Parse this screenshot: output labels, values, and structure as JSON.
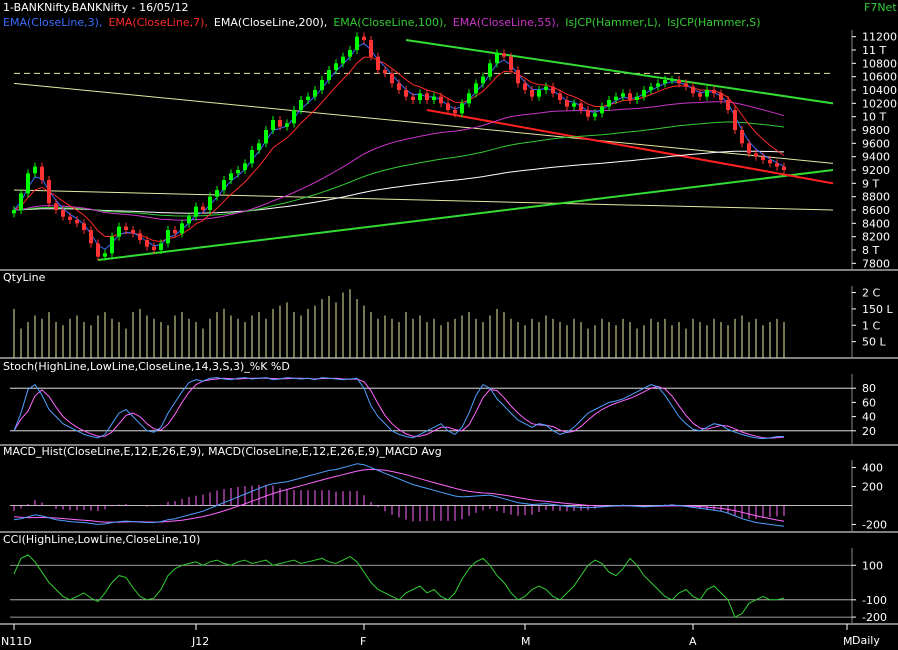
{
  "header": {
    "title": "1-BANKNifty.BANKNifty - 16/05/12",
    "brand": "F7Net",
    "interval": "Daily"
  },
  "colors": {
    "grid": "#ffffff",
    "axis_text": "#ffffff",
    "candle_up": "#00ff00",
    "candle_down": "#ff3333",
    "ema3": "#3a6cff",
    "ema7": "#ff2a2a",
    "ema200": "#ffffff",
    "ema100": "#33cc33",
    "ema55": "#cc33cc",
    "volume": "#e8e8a0",
    "stoch_k": "#4fa0ff",
    "stoch_d": "#ff66ff",
    "macd_hist": "#ff66ff",
    "macd_line": "#4fa0ff",
    "macd_avg": "#ff66ff",
    "cci": "#33cc33",
    "trend_green": "#33dd33",
    "trend_red": "#ff2020",
    "trend_yellow": "#e8e8a0"
  },
  "panels": {
    "price": {
      "indicators": [
        {
          "text": "EMA(CloseLine,3),",
          "color": "#3a6cff"
        },
        {
          "text": "EMA(CloseLine,7),",
          "color": "#ff2a2a"
        },
        {
          "text": "EMA(CloseLine,200),",
          "color": "#ffffff"
        },
        {
          "text": "EMA(CloseLine,100),",
          "color": "#33cc33"
        },
        {
          "text": "EMA(CloseLine,55),",
          "color": "#cc33cc"
        },
        {
          "text": "IsJCP(Hammer,L),",
          "color": "#33cc33"
        },
        {
          "text": "IsJCP(Hammer,S)",
          "color": "#33cc33"
        }
      ],
      "ticks": [
        "11200",
        "11 T",
        "10800",
        "10600",
        "10400",
        "10200",
        "10 T",
        "9800",
        "9600",
        "9400",
        "9200",
        "9 T",
        "8800",
        "8600",
        "8400",
        "8200",
        "8 T",
        "7800"
      ],
      "ylim": [
        7700,
        11300
      ]
    },
    "volume": {
      "title": "QtyLine",
      "ticks": [
        "2 C",
        "150 L",
        "1 C",
        "50 L"
      ],
      "ylim": [
        0,
        22
      ]
    },
    "stoch": {
      "title": "Stoch(HighLine,LowLine,CloseLine,14,3,S,3)_%K %D",
      "ticks": [
        "80",
        "60",
        "40",
        "20"
      ],
      "ylim": [
        0,
        100
      ]
    },
    "macd": {
      "title": "MACD_Hist(CloseLine,E,12,E,26,E,9),  MACD(CloseLine,E,12,E,26,E,9)_MACD  Avg",
      "ticks": [
        "400",
        "200",
        "-200"
      ],
      "ylim": [
        -280,
        480
      ]
    },
    "cci": {
      "title": "CCI(HighLine,LowLine,CloseLine,10)",
      "ticks": [
        "100",
        "-100",
        "-200"
      ],
      "ylim": [
        -240,
        200
      ]
    }
  },
  "x_axis": {
    "labels": [
      {
        "text": "N11D",
        "index": 0
      },
      {
        "text": "J12",
        "index": 26
      },
      {
        "text": "F",
        "index": 50
      },
      {
        "text": "M",
        "index": 73
      },
      {
        "text": "A",
        "index": 97
      },
      {
        "text": "M",
        "index": 119
      }
    ]
  },
  "chart_data": {
    "type": "candlestick",
    "title": "1-BANKNifty.BANKNifty - 16/05/12",
    "close": [
      8600,
      8850,
      9150,
      9250,
      9050,
      8700,
      8600,
      8500,
      8450,
      8400,
      8300,
      8100,
      7900,
      7950,
      8200,
      8350,
      8300,
      8250,
      8150,
      8050,
      8000,
      8100,
      8300,
      8250,
      8400,
      8500,
      8650,
      8600,
      8800,
      8900,
      9050,
      9150,
      9200,
      9300,
      9500,
      9600,
      9800,
      9950,
      9850,
      9900,
      10100,
      10250,
      10300,
      10400,
      10550,
      10700,
      10800,
      10900,
      11000,
      11200,
      11150,
      10900,
      10700,
      10650,
      10500,
      10400,
      10300,
      10250,
      10350,
      10250,
      10300,
      10200,
      10100,
      10050,
      10200,
      10350,
      10500,
      10600,
      10800,
      10950,
      10900,
      10700,
      10500,
      10400,
      10300,
      10400,
      10450,
      10350,
      10250,
      10150,
      10200,
      10100,
      10000,
      10050,
      10150,
      10250,
      10300,
      10350,
      10250,
      10300,
      10400,
      10450,
      10500,
      10550,
      10550,
      10500,
      10450,
      10350,
      10300,
      10400,
      10350,
      10250,
      10100,
      9800,
      9600,
      9450,
      9400,
      9350,
      9300,
      9250,
      9200
    ],
    "volume": [
      15,
      9,
      11,
      13,
      12,
      14,
      11,
      10,
      12,
      13,
      11,
      10,
      13,
      14,
      12,
      11,
      9,
      14,
      15,
      13,
      12,
      11,
      10,
      13,
      14,
      12,
      11,
      9,
      12,
      14,
      15,
      13,
      12,
      11,
      13,
      14,
      12,
      15,
      16,
      17,
      14,
      13,
      15,
      16,
      18,
      19,
      17,
      20,
      21,
      18,
      16,
      14,
      12,
      13,
      12,
      11,
      14,
      12,
      13,
      11,
      12,
      10,
      11,
      12,
      13,
      14,
      12,
      11,
      13,
      15,
      14,
      12,
      11,
      10,
      12,
      11,
      13,
      12,
      11,
      10,
      12,
      11,
      9,
      10,
      12,
      11,
      10,
      12,
      11,
      9,
      10,
      12,
      11,
      12,
      10,
      11,
      9,
      12,
      11,
      10,
      12,
      11,
      10,
      12,
      13,
      11,
      12,
      10,
      11,
      12,
      11
    ],
    "stoch_k": [
      20,
      45,
      78,
      85,
      70,
      50,
      40,
      30,
      25,
      20,
      15,
      12,
      10,
      15,
      30,
      45,
      50,
      40,
      30,
      20,
      18,
      25,
      45,
      60,
      75,
      88,
      92,
      90,
      94,
      95,
      93,
      92,
      94,
      95,
      93,
      94,
      95,
      92,
      93,
      95,
      94,
      93,
      94,
      92,
      95,
      94,
      93,
      92,
      93,
      94,
      80,
      55,
      40,
      30,
      20,
      15,
      12,
      10,
      15,
      20,
      25,
      30,
      20,
      15,
      25,
      45,
      70,
      85,
      80,
      65,
      55,
      45,
      35,
      30,
      25,
      30,
      28,
      20,
      15,
      18,
      25,
      35,
      45,
      50,
      55,
      60,
      62,
      65,
      70,
      75,
      80,
      85,
      82,
      70,
      55,
      40,
      30,
      22,
      20,
      25,
      30,
      28,
      22,
      18,
      15,
      12,
      10,
      9,
      10,
      12,
      12
    ],
    "macd": [
      -150,
      -140,
      -120,
      -100,
      -110,
      -130,
      -150,
      -160,
      -170,
      -175,
      -180,
      -190,
      -200,
      -195,
      -180,
      -170,
      -165,
      -170,
      -175,
      -180,
      -180,
      -170,
      -150,
      -140,
      -120,
      -100,
      -80,
      -60,
      -30,
      0,
      30,
      60,
      90,
      120,
      150,
      180,
      210,
      230,
      240,
      250,
      270,
      290,
      310,
      330,
      350,
      370,
      380,
      400,
      420,
      440,
      430,
      400,
      370,
      340,
      310,
      280,
      250,
      220,
      200,
      180,
      160,
      140,
      120,
      100,
      90,
      95,
      100,
      105,
      110,
      90,
      70,
      50,
      30,
      20,
      10,
      15,
      20,
      10,
      0,
      -10,
      -15,
      -20,
      -25,
      -20,
      -15,
      -10,
      -5,
      0,
      -5,
      -10,
      -15,
      -10,
      -5,
      0,
      5,
      0,
      -10,
      -20,
      -30,
      -40,
      -50,
      -60,
      -80,
      -110,
      -140,
      -160,
      -180,
      -190,
      -200,
      -210,
      -220
    ],
    "macd_avg": [
      -120,
      -125,
      -128,
      -128,
      -126,
      -128,
      -132,
      -138,
      -144,
      -150,
      -156,
      -162,
      -170,
      -175,
      -176,
      -175,
      -173,
      -172,
      -172,
      -174,
      -175,
      -174,
      -169,
      -163,
      -155,
      -144,
      -131,
      -117,
      -99,
      -79,
      -57,
      -33,
      -8,
      18,
      45,
      72,
      100,
      126,
      149,
      169,
      189,
      209,
      229,
      249,
      269,
      289,
      307,
      325,
      344,
      363,
      376,
      381,
      379,
      371,
      359,
      343,
      325,
      304,
      283,
      262,
      241,
      221,
      201,
      181,
      163,
      149,
      139,
      132,
      128,
      120,
      110,
      98,
      84,
      71,
      59,
      50,
      44,
      37,
      29,
      21,
      14,
      7,
      1,
      -3,
      -5,
      -6,
      -6,
      -5,
      -5,
      -6,
      -8,
      -8,
      -8,
      -6,
      -4,
      -3,
      -4,
      -7,
      -12,
      -17,
      -24,
      -31,
      -41,
      -55,
      -72,
      -90,
      -108,
      -124,
      -139,
      -153,
      -166
    ],
    "cci": [
      50,
      140,
      160,
      120,
      60,
      0,
      -40,
      -80,
      -100,
      -80,
      -60,
      -90,
      -110,
      -60,
      0,
      40,
      30,
      -30,
      -80,
      -100,
      -90,
      -40,
      40,
      80,
      100,
      110,
      120,
      100,
      120,
      130,
      110,
      100,
      120,
      130,
      110,
      120,
      130,
      100,
      110,
      120,
      130,
      110,
      120,
      130,
      140,
      120,
      110,
      130,
      150,
      120,
      60,
      0,
      -40,
      -60,
      -80,
      -100,
      -60,
      -40,
      -20,
      -60,
      -40,
      -80,
      -100,
      -60,
      20,
      80,
      120,
      140,
      100,
      40,
      0,
      -60,
      -100,
      -80,
      -40,
      -20,
      -40,
      -80,
      -100,
      -60,
      -20,
      40,
      100,
      130,
      110,
      60,
      40,
      80,
      140,
      100,
      40,
      0,
      -40,
      -80,
      -100,
      -60,
      -40,
      -80,
      -100,
      -40,
      -20,
      -60,
      -100,
      -200,
      -180,
      -120,
      -100,
      -80,
      -100,
      -100,
      -90
    ]
  }
}
